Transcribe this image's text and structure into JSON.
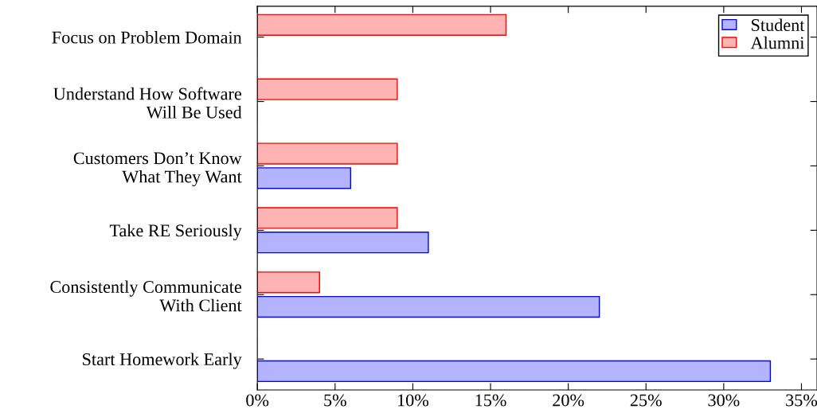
{
  "chart_data": {
    "type": "bar",
    "orientation": "horizontal",
    "categories": [
      "Focus on Problem Domain",
      "Understand How Software\nWill Be Used",
      "Customers Don’t Know\nWhat They Want",
      "Take RE Seriously",
      "Consistently Communicate\nWith Client",
      "Start Homework Early"
    ],
    "series": [
      {
        "name": "Student",
        "color": "#b3b3ff",
        "values": [
          0,
          0,
          6,
          11,
          22,
          33
        ]
      },
      {
        "name": "Alumni",
        "color": "#ffb3b3",
        "values": [
          16,
          9,
          9,
          9,
          4,
          0
        ]
      }
    ],
    "xlim": [
      0,
      36
    ],
    "xticks": [
      {
        "value": 0,
        "label": "0%"
      },
      {
        "value": 5,
        "label": "5%"
      },
      {
        "value": 10,
        "label": "10%"
      },
      {
        "value": 15,
        "label": "15%"
      },
      {
        "value": 20,
        "label": "20%"
      },
      {
        "value": 25,
        "label": "25%"
      },
      {
        "value": 30,
        "label": "30%"
      },
      {
        "value": 35,
        "label": "35%"
      }
    ],
    "grid": false,
    "legend": "top right"
  }
}
